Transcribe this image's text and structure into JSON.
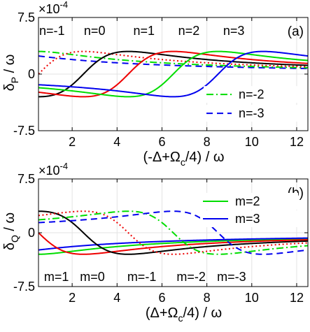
{
  "chart_data": [
    {
      "type": "line",
      "panel_label": "(a)",
      "ylabel": {
        "main": "δ",
        "sub": "P",
        "rest": " / ω"
      },
      "xlabel": {
        "pre": "(-Δ+Ω",
        "sub": "c",
        "post": "/4) / ω"
      },
      "scale_label": {
        "base": "×10",
        "exp": "-4"
      },
      "xlim": [
        0.5,
        12.5
      ],
      "ylim": [
        -7.5,
        7.5
      ],
      "xticks": [
        2,
        4,
        6,
        8,
        10,
        12
      ],
      "yticks": [
        {
          "v": 7.5,
          "label": "7.5"
        },
        {
          "v": 0,
          "label": "0"
        },
        {
          "v": -7.5,
          "label": "-7.5"
        }
      ],
      "grid": true,
      "legend": {
        "placement": "center-right",
        "entries": [
          "n=-2",
          "n=-3"
        ]
      },
      "series": [
        {
          "label": "n=-3",
          "color": "#0000ee",
          "dash": "dashed",
          "x0": -3.5,
          "label_at": null
        },
        {
          "label": "n=-2",
          "color": "#00dd00",
          "dash": "dashdot",
          "x0": -1.5,
          "label_at": null
        },
        {
          "label": "n=-1",
          "color": "#ee0000",
          "dash": "dotted",
          "x0": 0.5,
          "label_at": 1.1
        },
        {
          "label": "n=0",
          "color": "#000000",
          "dash": "solid",
          "x0": 2.5,
          "label_at": 3.0
        },
        {
          "label": "n=1",
          "color": "#ee0000",
          "dash": "solid",
          "x0": 4.5,
          "label_at": 5.2
        },
        {
          "label": "n=2",
          "color": "#00dd00",
          "dash": "solid",
          "x0": 6.5,
          "label_at": 7.2
        },
        {
          "label": "n=3",
          "color": "#0000ee",
          "dash": "solid",
          "x0": 8.5,
          "label_at": 9.2
        }
      ]
    },
    {
      "type": "line",
      "panel_label": "(b)",
      "ylabel": {
        "main": "δ",
        "sub": "Q",
        "rest": " / ω"
      },
      "xlabel": {
        "pre": "(Δ+Ω",
        "sub": "c",
        "post": "/4) / ω"
      },
      "scale_label": {
        "base": "×10",
        "exp": "-4"
      },
      "xlim": [
        0.5,
        12.5
      ],
      "ylim": [
        -7.5,
        7.5
      ],
      "xticks": [
        2,
        4,
        6,
        8,
        10,
        12
      ],
      "yticks": [
        {
          "v": 7.5,
          "label": "7.5"
        },
        {
          "v": 0,
          "label": "0"
        },
        {
          "v": -7.5,
          "label": "-7.5"
        }
      ],
      "grid": true,
      "legend": {
        "placement": "upper-right",
        "entries": [
          "m=2",
          "m=3"
        ]
      },
      "series": [
        {
          "label": "m=2",
          "color": "#00dd00",
          "dash": "solid",
          "x0": -1.5,
          "label_at": null
        },
        {
          "label": "m=3",
          "color": "#0000ee",
          "dash": "solid",
          "x0": -3.5,
          "label_at": null
        },
        {
          "label": "m=1",
          "color": "#ee0000",
          "dash": "solid",
          "x0": 0.5,
          "label_at": 1.3
        },
        {
          "label": "m=0",
          "color": "#000000",
          "dash": "solid",
          "x0": 2.5,
          "label_at": 2.9
        },
        {
          "label": "m=-1",
          "color": "#ee0000",
          "dash": "dotted",
          "x0": 4.5,
          "label_at": 5.1
        },
        {
          "label": "m=-2",
          "color": "#00dd00",
          "dash": "dashdot",
          "x0": 6.5,
          "label_at": 7.3
        },
        {
          "label": "m=-3",
          "color": "#0000ee",
          "dash": "dashed",
          "x0": 8.5,
          "label_at": 9.1
        }
      ]
    }
  ]
}
